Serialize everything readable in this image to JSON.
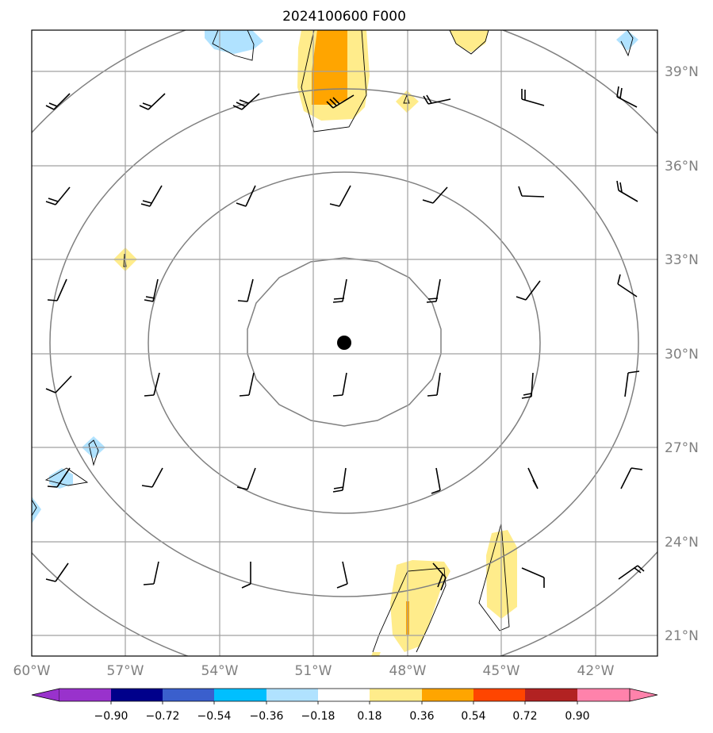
{
  "title": "2024100600 F000",
  "map": {
    "lat_labels": [
      "39°N",
      "36°N",
      "33°N",
      "30°N",
      "27°N",
      "24°N",
      "21°N"
    ],
    "lon_labels": [
      "60°W",
      "57°W",
      "54°W",
      "51°W",
      "48°W",
      "45°W",
      "42°W"
    ],
    "center_marker": "storm-center-dot"
  },
  "colorbar": {
    "levels": [
      "−0.90",
      "−0.72",
      "−0.54",
      "−0.36",
      "−0.18",
      "0.18",
      "0.36",
      "0.54",
      "0.72",
      "0.90"
    ],
    "colors": [
      "#9932CC",
      "#00008B",
      "#3A5FCD",
      "#00BFFF",
      "#B0E2FF",
      "#FFFFFF",
      "#FFEC8B",
      "#FFA500",
      "#FF4500",
      "#B22222",
      "#FF82AB"
    ]
  }
}
